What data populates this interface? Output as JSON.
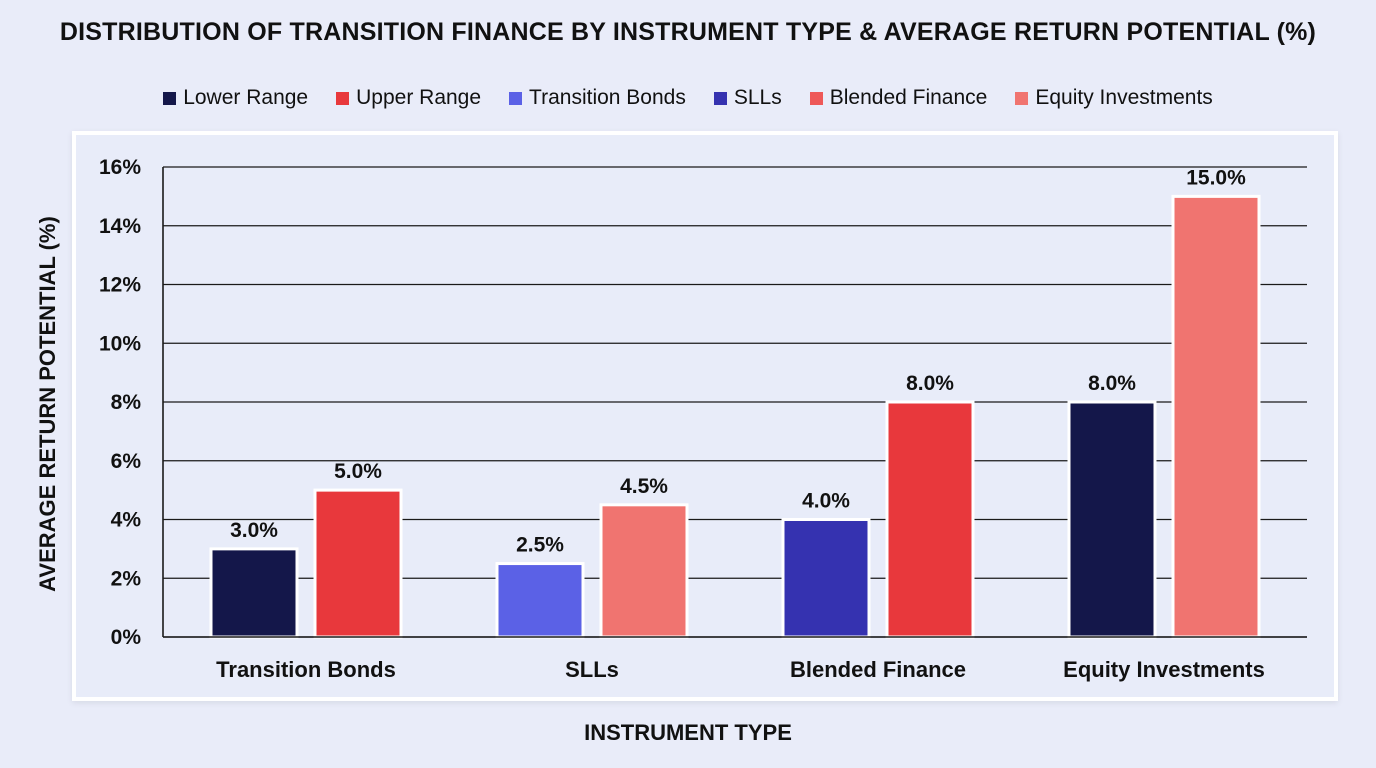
{
  "chart_data": {
    "type": "bar",
    "title": "DISTRIBUTION OF TRANSITION FINANCE BY INSTRUMENT TYPE & AVERAGE RETURN POTENTIAL (%)",
    "xlabel": "INSTRUMENT TYPE",
    "ylabel": "AVERAGE RETURN POTENTIAL (%)",
    "ylim": [
      0,
      16
    ],
    "yticks": [
      0,
      2,
      4,
      6,
      8,
      10,
      12,
      14,
      16
    ],
    "ytick_labels": [
      "0%",
      "2%",
      "4%",
      "6%",
      "8%",
      "10%",
      "12%",
      "14%",
      "16%"
    ],
    "grid": true,
    "legend_position": "top",
    "legend": [
      {
        "label": "Lower Range",
        "color": "#14174a"
      },
      {
        "label": "Upper Range",
        "color": "#e8383c"
      },
      {
        "label": "Transition Bonds",
        "color": "#5b61e6"
      },
      {
        "label": "SLLs",
        "color": "#3532b0"
      },
      {
        "label": "Blended Finance",
        "color": "#ee5858"
      },
      {
        "label": "Equity Investments",
        "color": "#f07470"
      }
    ],
    "categories": [
      "Transition Bonds",
      "SLLs",
      "Blended Finance",
      "Equity Investments"
    ],
    "series": [
      {
        "name": "Lower Range",
        "values": [
          3.0,
          2.5,
          4.0,
          8.0
        ],
        "value_labels": [
          "3.0%",
          "2.5%",
          "4.0%",
          "8.0%"
        ],
        "colors": [
          "#14174a",
          "#5b61e6",
          "#3532b0",
          "#14174a"
        ]
      },
      {
        "name": "Upper Range",
        "values": [
          5.0,
          4.5,
          8.0,
          15.0
        ],
        "value_labels": [
          "5.0%",
          "4.5%",
          "8.0%",
          "15.0%"
        ],
        "colors": [
          "#e8383c",
          "#f07470",
          "#e8383c",
          "#f07470"
        ]
      }
    ]
  }
}
